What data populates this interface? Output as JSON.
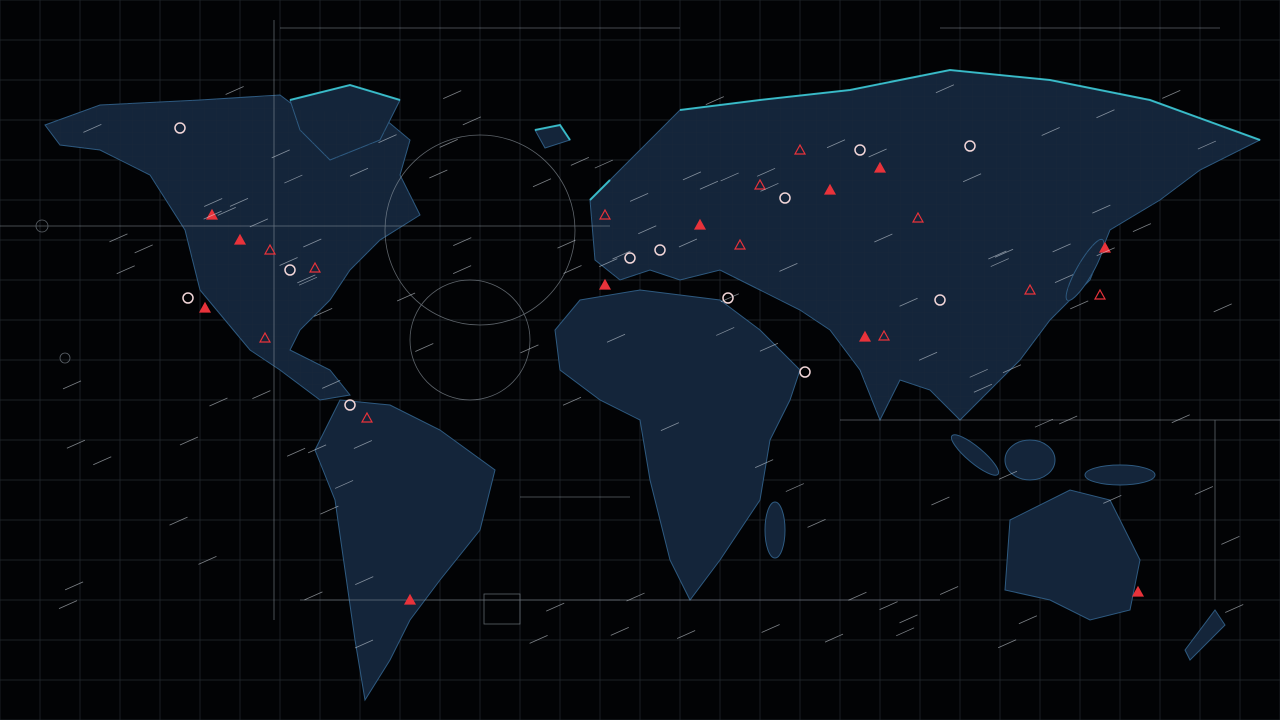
{
  "map": {
    "style": "holographic world map",
    "colors": {
      "background": "#020305",
      "land_fill": "#14253a",
      "land_stroke": "#2e5a80",
      "coast_glow": "#3fd6e0",
      "grid": "#2a2f36",
      "hud_line": "#9aa4ad",
      "marker_red": "#e8333b",
      "marker_white": "#f2d6d8"
    },
    "icons": [
      "alert-triangle-icon",
      "location-ring-icon",
      "crosshair-icon"
    ]
  }
}
